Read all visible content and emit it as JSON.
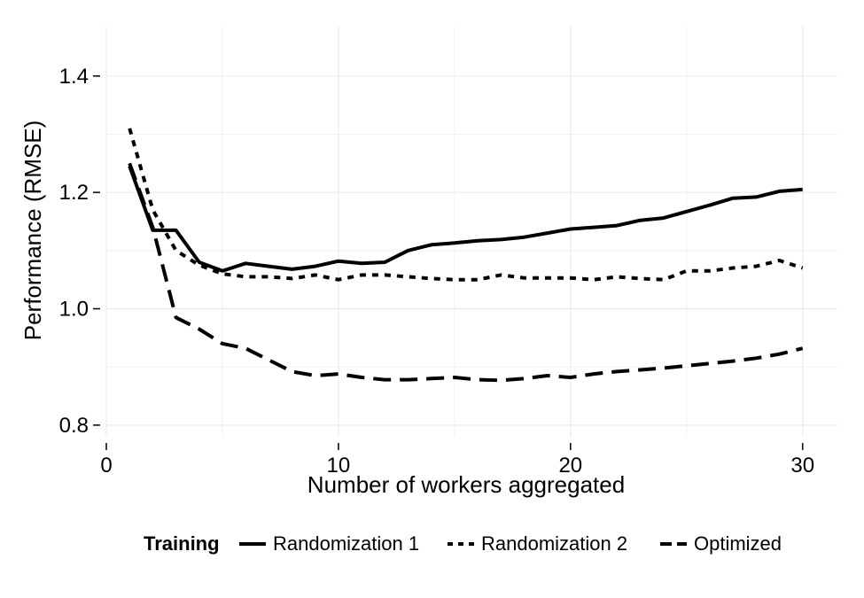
{
  "chart_data": {
    "type": "line",
    "xlabel": "Number of workers aggregated",
    "ylabel": "Performance (RMSE)",
    "xlim": [
      0,
      31.5
    ],
    "ylim": [
      0.78,
      1.485
    ],
    "xticks": [
      0,
      10,
      20,
      30
    ],
    "xtick_labels": [
      "0",
      "10",
      "20",
      "30"
    ],
    "yticks": [
      0.8,
      1.0,
      1.2,
      1.4
    ],
    "ytick_labels": [
      "0.8",
      "1.0",
      "1.2",
      "1.4"
    ],
    "grid": true,
    "legend_position": "bottom",
    "legend_title": "Training",
    "line_color": "#000000",
    "grid_color": "#ebebeb",
    "series": [
      {
        "name": "Randomization 1",
        "dash": "solid",
        "x": [
          1,
          2,
          3,
          4,
          5,
          6,
          7,
          8,
          9,
          10,
          11,
          12,
          13,
          14,
          15,
          16,
          17,
          18,
          19,
          20,
          21,
          22,
          23,
          24,
          25,
          26,
          27,
          28,
          29,
          30
        ],
        "y": [
          1.245,
          1.135,
          1.135,
          1.08,
          1.065,
          1.078,
          1.073,
          1.068,
          1.073,
          1.082,
          1.078,
          1.08,
          1.1,
          1.11,
          1.113,
          1.117,
          1.119,
          1.123,
          1.13,
          1.137,
          1.14,
          1.143,
          1.152,
          1.156,
          1.167,
          1.178,
          1.19,
          1.192,
          1.202,
          1.205
        ]
      },
      {
        "name": "Randomization 2",
        "dash": "dotted",
        "x": [
          1,
          2,
          3,
          4,
          5,
          6,
          7,
          8,
          9,
          10,
          11,
          12,
          13,
          14,
          15,
          16,
          17,
          18,
          19,
          20,
          21,
          22,
          23,
          24,
          25,
          26,
          27,
          28,
          29,
          30
        ],
        "y": [
          1.31,
          1.17,
          1.1,
          1.075,
          1.06,
          1.055,
          1.055,
          1.052,
          1.058,
          1.05,
          1.058,
          1.058,
          1.055,
          1.052,
          1.05,
          1.05,
          1.058,
          1.053,
          1.053,
          1.053,
          1.05,
          1.055,
          1.052,
          1.05,
          1.065,
          1.065,
          1.07,
          1.073,
          1.083,
          1.07
        ]
      },
      {
        "name": "Optimized",
        "dash": "dashed",
        "x": [
          1,
          2,
          3,
          4,
          5,
          6,
          7,
          8,
          9,
          10,
          11,
          12,
          13,
          14,
          15,
          16,
          17,
          18,
          19,
          20,
          21,
          22,
          23,
          24,
          25,
          26,
          27,
          28,
          29,
          30
        ],
        "y": [
          1.25,
          1.14,
          0.985,
          0.965,
          0.94,
          0.932,
          0.912,
          0.892,
          0.885,
          0.888,
          0.882,
          0.878,
          0.878,
          0.88,
          0.882,
          0.878,
          0.877,
          0.88,
          0.885,
          0.882,
          0.888,
          0.892,
          0.895,
          0.898,
          0.902,
          0.906,
          0.91,
          0.915,
          0.922,
          0.932
        ]
      }
    ]
  }
}
